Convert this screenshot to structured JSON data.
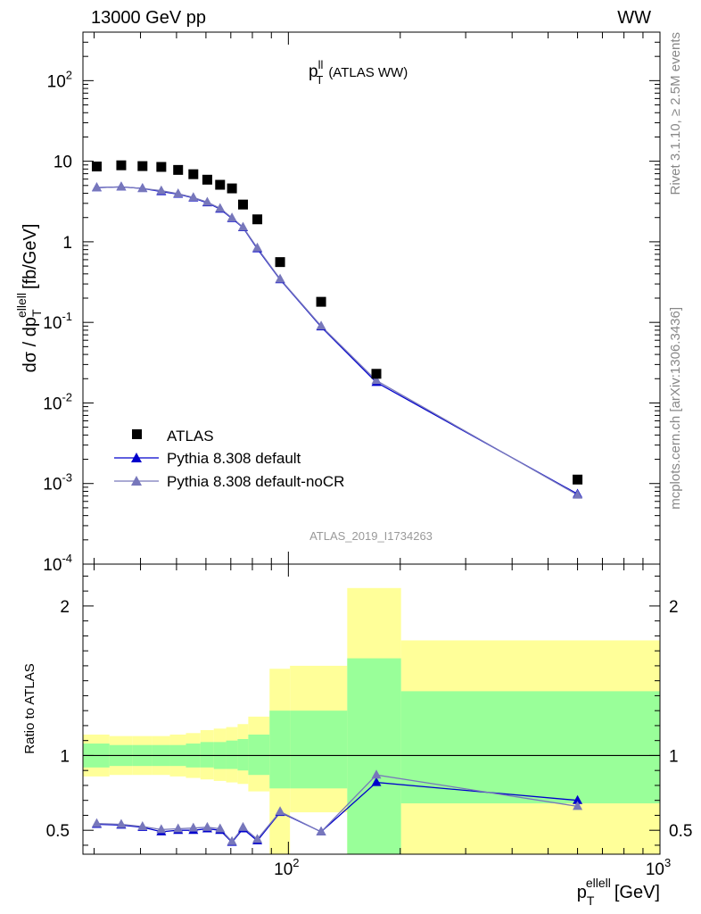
{
  "header": {
    "left": "13000 GeV pp",
    "right": "WW"
  },
  "side_labels": {
    "rivet": "Rivet 3.1.10, ≥ 2.5M events",
    "mcplots": "mcplots.cern.ch [arXiv:1306.3436]"
  },
  "chart_data": [
    {
      "type": "scatter",
      "title": "p_T^ll (ATLAS WW)",
      "title_main": "p",
      "title_sup": "ll",
      "title_sub": "T",
      "title_rest": "(ATLAS WW)",
      "ylabel": "dσ / dp_T^ellell [fb/GeV]",
      "ylabel_parts": {
        "a": "dσ / dp",
        "sub": "T",
        "sup": "ellell",
        "b": "[fb/GeV]"
      },
      "xscale": "log",
      "yscale": "log",
      "xlim": [
        28,
        1000
      ],
      "ylim": [
        0.0001,
        400
      ],
      "yticks": [
        {
          "base": "10",
          "exp": "-4"
        },
        {
          "base": "10",
          "exp": "-3"
        },
        {
          "base": "10",
          "exp": "-2"
        },
        {
          "base": "10",
          "exp": "-1"
        },
        {
          "base": "1",
          "exp": ""
        },
        {
          "base": "10",
          "exp": ""
        },
        {
          "base": "10",
          "exp": "2"
        }
      ],
      "watermark": "ATLAS_2019_I1734263",
      "legend": {
        "position": "bottom-left",
        "entries": [
          "ATLAS",
          "Pythia 8.308 default",
          "Pythia 8.308 default-noCR"
        ]
      },
      "series": [
        {
          "name": "ATLAS",
          "x": [
            30.5,
            35.5,
            40.5,
            45.5,
            50.5,
            55.5,
            60.5,
            65.5,
            70.5,
            75.5,
            82.5,
            95,
            122.5,
            172.5,
            600
          ],
          "y": [
            8.6,
            8.9,
            8.7,
            8.5,
            7.8,
            6.9,
            5.9,
            5.1,
            4.6,
            2.9,
            1.9,
            0.56,
            0.18,
            0.023,
            0.00112
          ]
        },
        {
          "name": "Pythia 8.308 default",
          "color": "#0000cc",
          "x": [
            30.5,
            35.5,
            40.5,
            45.5,
            50.5,
            55.5,
            60.5,
            65.5,
            70.5,
            75.5,
            82.5,
            95,
            122.5,
            172.5,
            600
          ],
          "y": [
            4.7,
            4.8,
            4.6,
            4.2,
            3.9,
            3.5,
            3.05,
            2.55,
            1.95,
            1.5,
            0.82,
            0.34,
            0.088,
            0.018,
            0.00074
          ]
        },
        {
          "name": "Pythia 8.308 default-noCR",
          "color": "#7777bb",
          "x": [
            30.5,
            35.5,
            40.5,
            45.5,
            50.5,
            55.5,
            60.5,
            65.5,
            70.5,
            75.5,
            82.5,
            95,
            122.5,
            172.5,
            600
          ],
          "y": [
            4.7,
            4.8,
            4.6,
            4.3,
            3.95,
            3.55,
            3.1,
            2.6,
            1.98,
            1.52,
            0.84,
            0.345,
            0.09,
            0.019,
            0.00072
          ]
        }
      ]
    },
    {
      "type": "scatter",
      "ylabel": "Ratio to ATLAS",
      "xlabel": "p_T^ellell [GeV]",
      "xlabel_parts": {
        "a": "p",
        "sub": "T",
        "sup": "ellell",
        "b": "[GeV]"
      },
      "xscale": "log",
      "xlim": [
        28,
        1000
      ],
      "ylim": [
        0.34,
        2.28
      ],
      "yticks": [
        "0.5",
        "1",
        "2"
      ],
      "xticks": [
        {
          "base": "10",
          "exp": "2"
        },
        {
          "base": "10",
          "exp": "3"
        }
      ],
      "bins": [
        {
          "lo": 28,
          "hi": 33,
          "green": [
            0.92,
            1.08
          ],
          "yellow": [
            0.86,
            1.14
          ]
        },
        {
          "lo": 33,
          "hi": 38,
          "green": [
            0.93,
            1.07
          ],
          "yellow": [
            0.87,
            1.13
          ]
        },
        {
          "lo": 38,
          "hi": 43,
          "green": [
            0.93,
            1.07
          ],
          "yellow": [
            0.87,
            1.13
          ]
        },
        {
          "lo": 43,
          "hi": 48,
          "green": [
            0.93,
            1.07
          ],
          "yellow": [
            0.87,
            1.13
          ]
        },
        {
          "lo": 48,
          "hi": 53,
          "green": [
            0.93,
            1.07
          ],
          "yellow": [
            0.86,
            1.14
          ]
        },
        {
          "lo": 53,
          "hi": 58,
          "green": [
            0.92,
            1.08
          ],
          "yellow": [
            0.85,
            1.15
          ]
        },
        {
          "lo": 58,
          "hi": 63,
          "green": [
            0.92,
            1.09
          ],
          "yellow": [
            0.84,
            1.17
          ]
        },
        {
          "lo": 63,
          "hi": 68,
          "green": [
            0.91,
            1.09
          ],
          "yellow": [
            0.83,
            1.18
          ]
        },
        {
          "lo": 68,
          "hi": 73,
          "green": [
            0.91,
            1.1
          ],
          "yellow": [
            0.82,
            1.19
          ]
        },
        {
          "lo": 73,
          "hi": 78,
          "green": [
            0.9,
            1.11
          ],
          "yellow": [
            0.81,
            1.21
          ]
        },
        {
          "lo": 78,
          "hi": 89,
          "green": [
            0.87,
            1.14
          ],
          "yellow": [
            0.76,
            1.26
          ]
        },
        {
          "lo": 89,
          "hi": 101,
          "green": [
            0.78,
            1.3
          ],
          "yellow": [
            0.62,
            1.58
          ]
        },
        {
          "lo": 101,
          "hi": 144,
          "green": [
            0.78,
            1.3
          ],
          "yellow": [
            0.62,
            1.6
          ]
        },
        {
          "lo": 144,
          "hi": 201,
          "green": [
            0.34,
            1.65
          ],
          "yellow": [
            0.34,
            2.12
          ]
        },
        {
          "lo": 201,
          "hi": 1000,
          "green": [
            0.34,
            1.43
          ],
          "yellow": [
            0.34,
            1.77
          ]
        }
      ],
      "yellow_low": [
        {
          "lo": 89,
          "hi": 101,
          "v": 0.62
        },
        {
          "lo": 201,
          "hi": 1000,
          "v": 0.68
        }
      ],
      "series": [
        {
          "name": "Pythia 8.308 default",
          "color": "#0000cc",
          "x": [
            30.5,
            35.5,
            40.5,
            45.5,
            50.5,
            55.5,
            60.5,
            65.5,
            70.5,
            75.5,
            82.5,
            95,
            122.5,
            172.5,
            600
          ],
          "y": [
            0.54,
            0.535,
            0.52,
            0.49,
            0.5,
            0.5,
            0.51,
            0.5,
            0.42,
            0.51,
            0.43,
            0.62,
            0.49,
            0.82,
            0.7
          ]
        },
        {
          "name": "Pythia 8.308 default-noCR",
          "color": "#7777bb",
          "x": [
            30.5,
            35.5,
            40.5,
            45.5,
            50.5,
            55.5,
            60.5,
            65.5,
            70.5,
            75.5,
            82.5,
            95,
            122.5,
            172.5,
            600
          ],
          "y": [
            0.545,
            0.54,
            0.525,
            0.505,
            0.51,
            0.515,
            0.52,
            0.51,
            0.425,
            0.52,
            0.44,
            0.625,
            0.49,
            0.87,
            0.66
          ]
        }
      ]
    }
  ]
}
